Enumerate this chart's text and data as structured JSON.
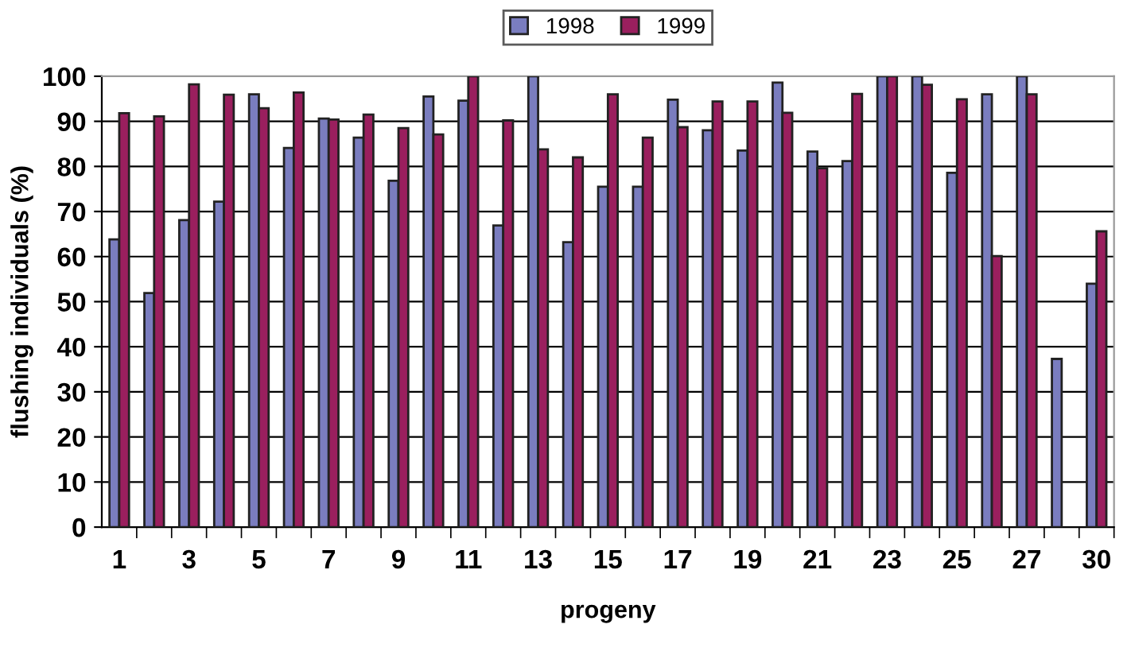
{
  "chart_data": {
    "type": "bar",
    "xlabel": "progeny",
    "ylabel": "flushing individuals (%)",
    "categories": [
      "1",
      null,
      "3",
      null,
      "5",
      null,
      "7",
      null,
      "9",
      null,
      "11",
      null,
      "13",
      null,
      "15",
      null,
      "17",
      null,
      "19",
      null,
      "21",
      null,
      "23",
      null,
      "25",
      null,
      "27",
      null,
      "30"
    ],
    "series": [
      {
        "name": "1998",
        "color": "#7a7dbf",
        "values": [
          63.8,
          51.9,
          68.1,
          72.2,
          96,
          84.1,
          90.6,
          86.4,
          76.8,
          95.5,
          94.6,
          66.9,
          100,
          63.2,
          75.5,
          75.5,
          94.8,
          88,
          83.5,
          98.6,
          83.3,
          81.2,
          100,
          100,
          78.6,
          96,
          100,
          37.3,
          54
        ]
      },
      {
        "name": "1999",
        "color": "#9a1f5e",
        "values": [
          91.8,
          91.1,
          98.2,
          95.9,
          92.9,
          96.4,
          90.4,
          91.5,
          88.5,
          87.1,
          100,
          90.2,
          83.8,
          82,
          96,
          86.4,
          88.7,
          94.4,
          94.4,
          91.9,
          79.6,
          96.1,
          100,
          98.1,
          94.9,
          60.1,
          96,
          null,
          65.6
        ]
      }
    ],
    "ylim": [
      0,
      100
    ],
    "yticks": [
      0,
      10,
      20,
      30,
      40,
      50,
      60,
      70,
      80,
      90,
      100
    ],
    "grid": "y",
    "legend": "top"
  }
}
